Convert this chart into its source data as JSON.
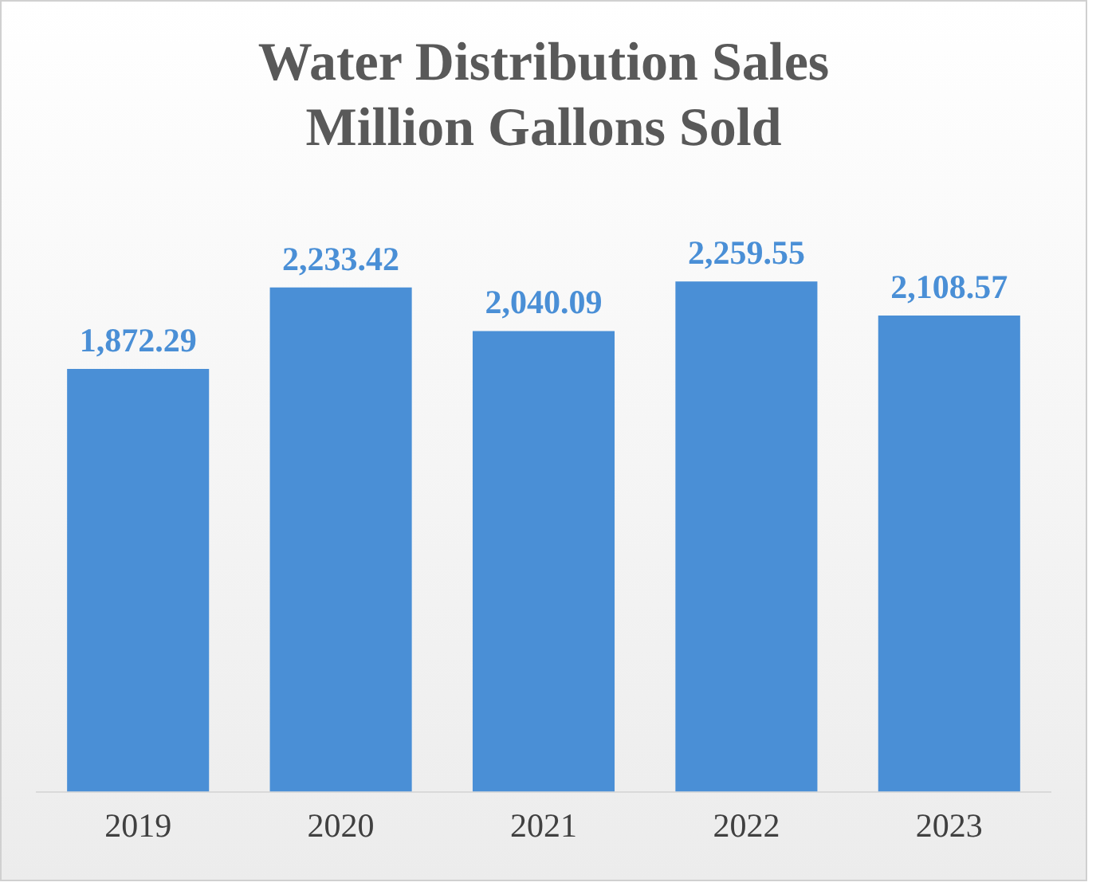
{
  "chart_data": {
    "type": "bar",
    "title": "Water Distribution Sales",
    "subtitle": "Million Gallons Sold",
    "categories": [
      "2019",
      "2020",
      "2021",
      "2022",
      "2023"
    ],
    "values": [
      1872.29,
      2233.42,
      2040.09,
      2259.55,
      2108.57
    ],
    "value_labels": [
      "1,872.29",
      "2,233.42",
      "2,040.09",
      "2,259.55",
      "2,108.57"
    ],
    "color": "#4a8fd6",
    "grid": false,
    "legend": false
  }
}
